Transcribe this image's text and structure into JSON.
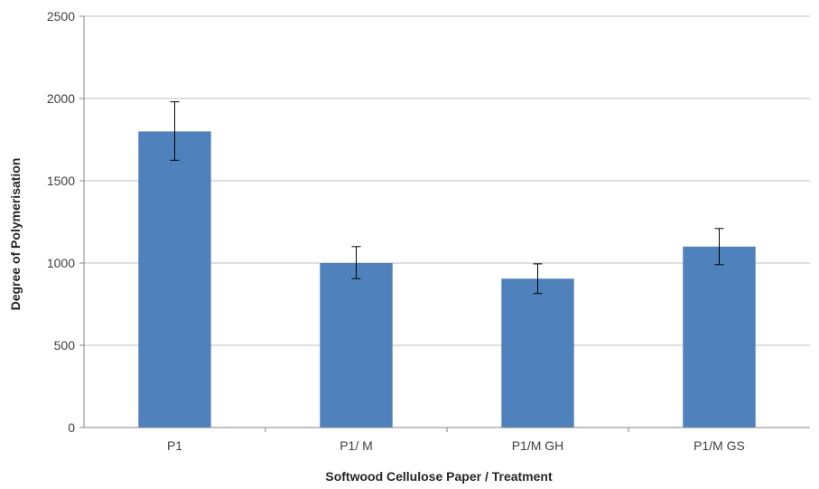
{
  "chart_data": {
    "type": "bar",
    "title": "",
    "xlabel": "Softwood Cellulose Paper / Treatment",
    "ylabel": "Degree of Polymerisation",
    "categories": [
      "P1",
      "P1/ M",
      "P1/M GH",
      "P1/M GS"
    ],
    "values": [
      1800,
      1000,
      905,
      1100
    ],
    "error_low": [
      1625,
      905,
      815,
      990
    ],
    "error_high": [
      1980,
      1100,
      995,
      1210
    ],
    "ylim": [
      0,
      2500
    ],
    "yticks": [
      0,
      500,
      1000,
      1500,
      2000,
      2500
    ],
    "grid": true,
    "legend": "none",
    "bar_color": "#4f81bd",
    "grid_color": "#bfbfbf",
    "axis_color": "#868686"
  }
}
